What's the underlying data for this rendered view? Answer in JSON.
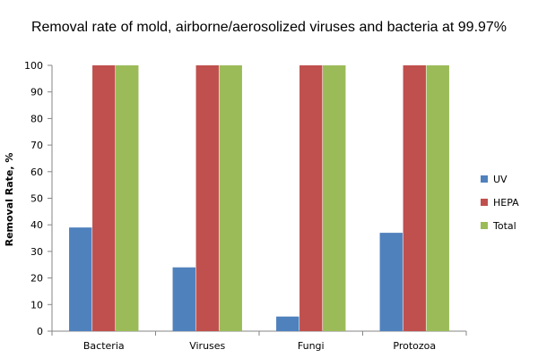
{
  "chart_data": {
    "type": "bar",
    "title": "Removal rate of mold, airborne/aerosolized viruses and bacteria at 99.97%",
    "xlabel": "",
    "ylabel": "Removal Rate, %",
    "ylim": [
      0,
      100
    ],
    "yticks": [
      0,
      10,
      20,
      30,
      40,
      50,
      60,
      70,
      80,
      90,
      100
    ],
    "categories": [
      "Bacteria",
      "Viruses",
      "Fungi",
      "Protozoa"
    ],
    "series": [
      {
        "name": "UV",
        "color": "#4f81bd",
        "values": [
          39,
          24,
          5.5,
          37
        ]
      },
      {
        "name": "HEPA",
        "color": "#c0504d",
        "values": [
          100,
          100,
          100,
          100
        ]
      },
      {
        "name": "Total",
        "color": "#9bbb59",
        "values": [
          100,
          100,
          100,
          100
        ]
      }
    ],
    "grid": false,
    "legend_position": "right"
  }
}
